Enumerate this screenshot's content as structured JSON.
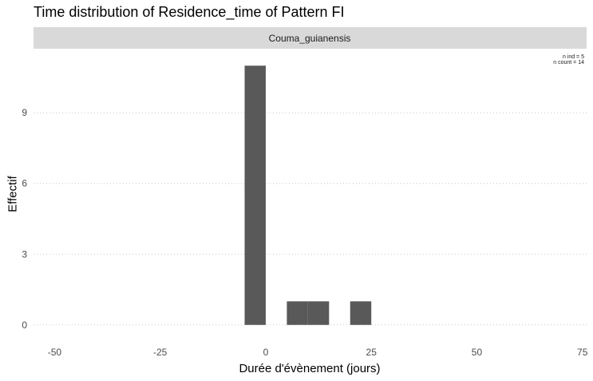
{
  "chart_data": {
    "type": "bar",
    "title": "Time distribution of Residence_time of Pattern FI",
    "xlabel": "Durée d'évènement (jours)",
    "ylabel": "Effectif",
    "facet_label": "Couma_guianensis",
    "annotations": [
      "n ind =  5",
      "n count =  14"
    ],
    "xlim": [
      -55,
      76
    ],
    "ylim": [
      -0.55,
      11.55
    ],
    "x_ticks": [
      -50,
      -25,
      0,
      25,
      50,
      75
    ],
    "y_ticks": [
      0,
      3,
      6,
      9
    ],
    "bin_width": 5,
    "bars": [
      {
        "x_start": -5,
        "x_end": 0,
        "count": 11
      },
      {
        "x_start": 5,
        "x_end": 10,
        "count": 1
      },
      {
        "x_start": 10,
        "x_end": 15,
        "count": 1
      },
      {
        "x_start": 20,
        "x_end": 25,
        "count": 1
      }
    ],
    "grid": true,
    "legend": "none",
    "colors": {
      "bar": "#595959",
      "strip": "#d9d9d9",
      "grid": "#c8c8c8",
      "tick_text": "#4d4d4d"
    }
  }
}
